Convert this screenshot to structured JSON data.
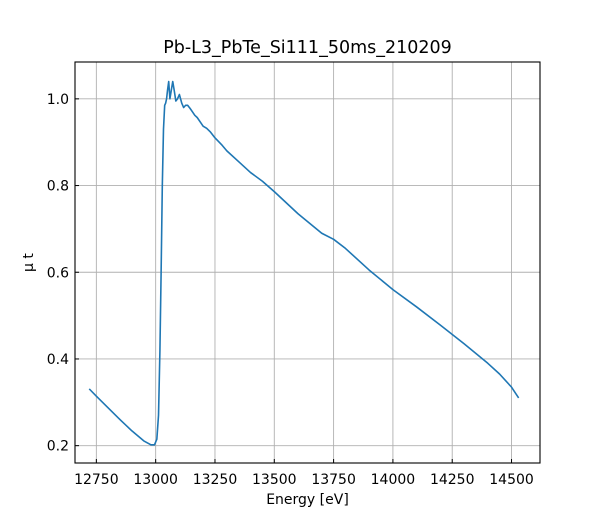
{
  "chart_data": {
    "type": "line",
    "title": "Pb-L3_PbTe_Si111_50ms_210209",
    "xlabel": "Energy [eV]",
    "ylabel": "μ t",
    "xlim": [
      12660,
      14620
    ],
    "ylim": [
      0.16,
      1.085
    ],
    "xticks": [
      12750,
      13000,
      13250,
      13500,
      13750,
      14000,
      14250,
      14500
    ],
    "yticks": [
      0.2,
      0.4,
      0.6,
      0.8,
      1.0
    ],
    "ytick_labels": [
      "0.2",
      "0.4",
      "0.6",
      "0.8",
      "1.0"
    ],
    "grid": true,
    "line_color": "#1f77b4",
    "series": [
      {
        "x": [
          12720,
          12750,
          12800,
          12850,
          12900,
          12950,
          12980,
          12995,
          13005,
          13012,
          13018,
          13023,
          13028,
          13033,
          13038,
          13042,
          13046,
          13050,
          13055,
          13060,
          13066,
          13072,
          13078,
          13085,
          13092,
          13100,
          13110,
          13118,
          13126,
          13135,
          13145,
          13155,
          13165,
          13175,
          13190,
          13200,
          13215,
          13230,
          13250,
          13280,
          13300,
          13350,
          13400,
          13450,
          13500,
          13600,
          13700,
          13750,
          13800,
          13900,
          14000,
          14100,
          14200,
          14300,
          14400,
          14450,
          14500,
          14530
        ],
        "y": [
          0.331,
          0.314,
          0.287,
          0.26,
          0.234,
          0.211,
          0.202,
          0.202,
          0.215,
          0.27,
          0.42,
          0.6,
          0.8,
          0.93,
          0.985,
          0.99,
          1.0,
          1.02,
          1.04,
          1.0,
          1.02,
          1.04,
          1.02,
          0.995,
          1.0,
          1.01,
          0.99,
          0.98,
          0.985,
          0.985,
          0.978,
          0.97,
          0.962,
          0.957,
          0.945,
          0.937,
          0.932,
          0.924,
          0.91,
          0.893,
          0.88,
          0.855,
          0.83,
          0.81,
          0.786,
          0.735,
          0.69,
          0.676,
          0.655,
          0.605,
          0.56,
          0.52,
          0.478,
          0.435,
          0.39,
          0.365,
          0.335,
          0.31
        ]
      }
    ]
  }
}
